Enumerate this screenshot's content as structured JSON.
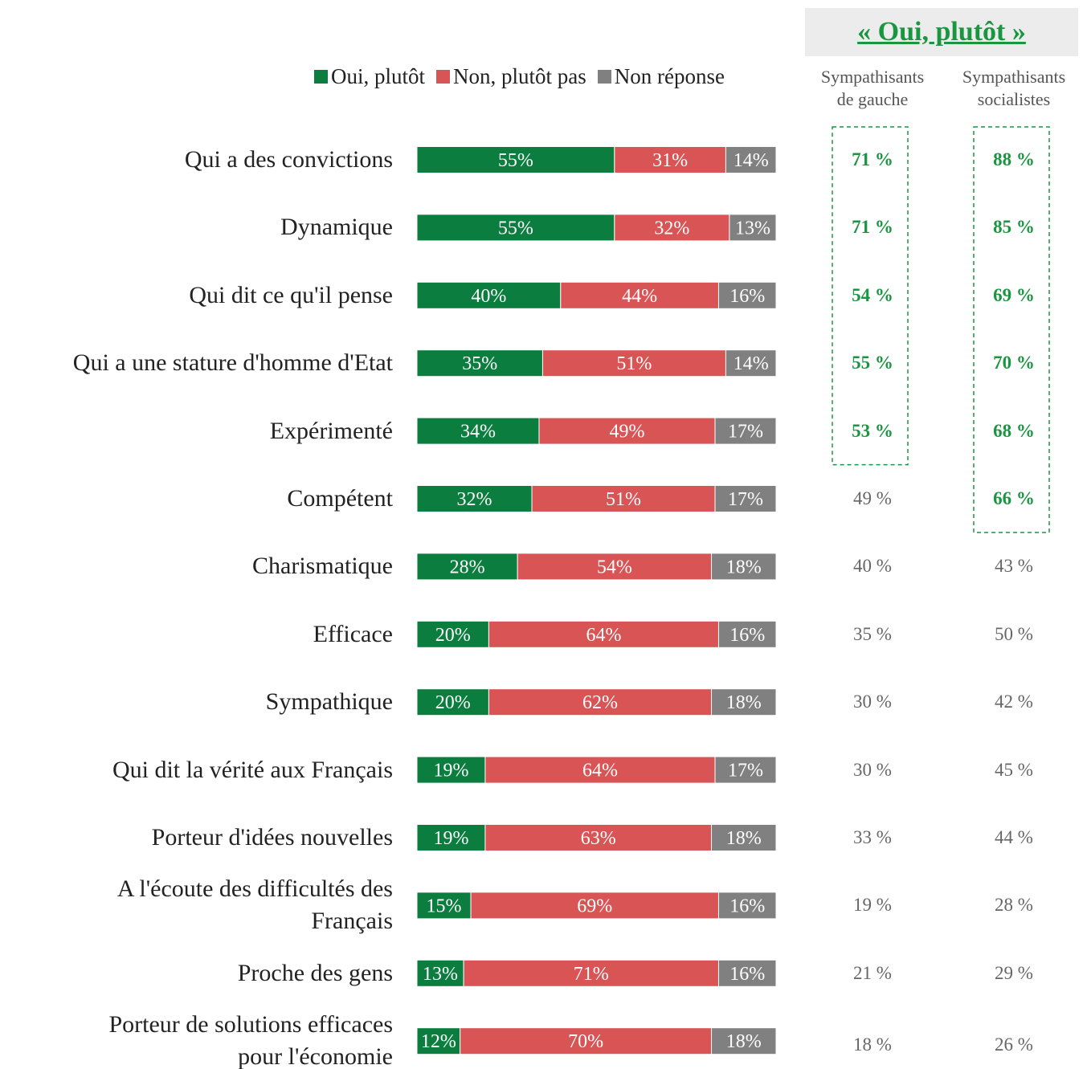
{
  "chart_data": {
    "type": "bar",
    "orientation": "horizontal",
    "stacked": true,
    "xlim": [
      0,
      100
    ],
    "categories": [
      "Qui a des convictions",
      "Dynamique",
      "Qui dit ce qu'il pense",
      "Qui a une stature d'homme d'Etat",
      "Expérimenté",
      "Compétent",
      "Charismatique",
      "Efficace",
      "Sympathique",
      "Qui dit la vérité aux Français",
      "Porteur d'idées nouvelles",
      "A l'écoute des difficultés des\nFrançais",
      "Proche des gens",
      "Porteur de solutions efficaces\npour l'économie"
    ],
    "series": [
      {
        "name": "Oui, plutôt",
        "color": "#0b7d3e",
        "values": [
          55,
          55,
          40,
          35,
          34,
          32,
          28,
          20,
          20,
          19,
          19,
          15,
          13,
          12
        ],
        "value_labels": [
          "55%",
          "55%",
          "40%",
          "35%",
          "34%",
          "32%",
          "28%",
          "20%",
          "20%",
          "19%",
          "19%",
          "15%",
          "13%",
          "12%"
        ]
      },
      {
        "name": "Non, plutôt pas",
        "color": "#d95454",
        "values": [
          31,
          32,
          44,
          51,
          49,
          51,
          54,
          64,
          62,
          64,
          63,
          69,
          71,
          70
        ],
        "value_labels": [
          "31%",
          "32%",
          "44%",
          "51%",
          "49%",
          "51%",
          "54%",
          "64%",
          "62%",
          "64%",
          "63%",
          "69%",
          "71%",
          "70%"
        ]
      },
      {
        "name": "Non réponse",
        "color": "#808080",
        "values": [
          14,
          13,
          16,
          14,
          17,
          17,
          18,
          16,
          18,
          17,
          18,
          16,
          16,
          18
        ],
        "value_labels": [
          "14%",
          "13%",
          "16%",
          "14%",
          "17%",
          "17%",
          "18%",
          "16%",
          "18%",
          "17%",
          "18%",
          "16%",
          "16%",
          "18%"
        ]
      }
    ],
    "side_title": "« Oui, plutôt »",
    "columns": [
      {
        "name": "Sympathisants\nde gauche",
        "values": [
          71,
          71,
          54,
          55,
          53,
          49,
          40,
          35,
          30,
          30,
          33,
          19,
          21,
          18
        ],
        "value_labels": [
          "71 %",
          "71 %",
          "54 %",
          "55 %",
          "53 %",
          "49 %",
          "40 %",
          "35 %",
          "30 %",
          "30 %",
          "33 %",
          "19 %",
          "21 %",
          "18 %"
        ],
        "highlight": [
          true,
          true,
          true,
          true,
          true,
          false,
          false,
          false,
          false,
          false,
          false,
          false,
          false,
          false
        ]
      },
      {
        "name": "Sympathisants\nsocialistes",
        "values": [
          88,
          85,
          69,
          70,
          68,
          66,
          43,
          50,
          42,
          45,
          44,
          28,
          29,
          26
        ],
        "value_labels": [
          "88 %",
          "85 %",
          "69 %",
          "70 %",
          "68 %",
          "66 %",
          "43 %",
          "50 %",
          "42 %",
          "45 %",
          "44 %",
          "28 %",
          "29 %",
          "26 %"
        ],
        "highlight": [
          true,
          true,
          true,
          true,
          true,
          true,
          false,
          false,
          false,
          false,
          false,
          false,
          false,
          false
        ]
      }
    ],
    "highlight_color": "#1a9641"
  }
}
